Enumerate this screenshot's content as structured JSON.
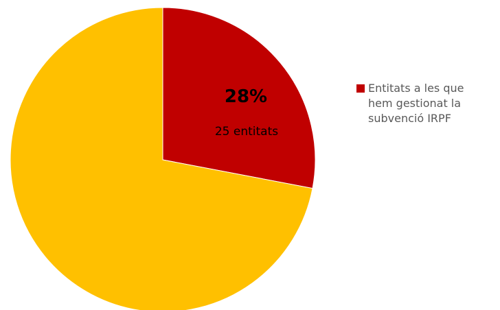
{
  "chart_data": {
    "type": "pie",
    "title": "",
    "slices": [
      {
        "name": "Entitats a les que hem gestionat la subvenció IRPF",
        "value": 28,
        "percent_label": "28%",
        "count_label": "25 entitats",
        "color": "#c00000"
      },
      {
        "name": "",
        "value": 72,
        "color": "#ffc000"
      }
    ],
    "legend": {
      "placement": "right",
      "entries": [
        "Entitats a les que hem gestionat la subvenció IRPF"
      ]
    },
    "start_angle": "top",
    "direction": "clockwise"
  }
}
